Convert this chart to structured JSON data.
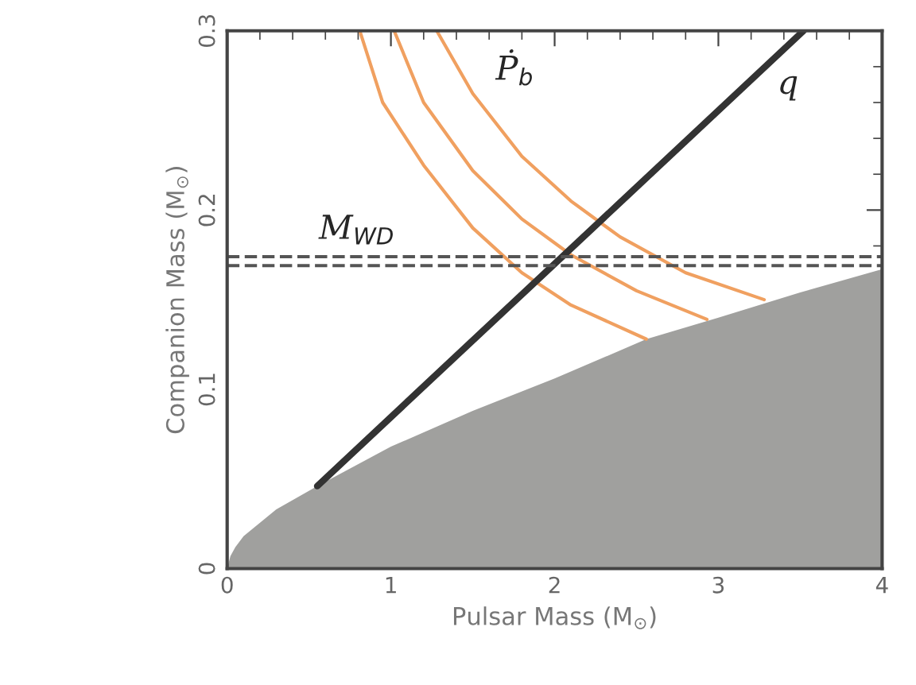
{
  "chart_data": {
    "type": "line",
    "xlabel": "Pulsar Mass (M$_{⊙}$)",
    "ylabel": "Companion Mass (M$_{⊙}$)",
    "xlim": [
      0,
      4
    ],
    "ylim": [
      0,
      0.3
    ],
    "xticks": [
      0,
      1,
      2,
      3,
      4
    ],
    "yticks": [
      0,
      0.1,
      0.2,
      0.3
    ],
    "grid": false,
    "legend": false,
    "series": [
      {
        "type": "area",
        "color": "#a0a09e",
        "x": [
          0,
          0.02,
          0.05,
          0.1,
          0.3,
          0.55,
          1.0,
          1.5,
          2.0,
          2.56,
          3.0,
          3.5,
          4.0
        ],
        "values": [
          0,
          0.007,
          0.012,
          0.018,
          0.033,
          0.046,
          0.068,
          0.088,
          0.106,
          0.128,
          0.14,
          0.154,
          0.167
        ]
      },
      {
        "color": "#f0a060",
        "x": [
          0.81,
          0.95,
          1.2,
          1.5,
          1.8,
          2.1,
          2.56
        ],
        "values": [
          0.3,
          0.26,
          0.225,
          0.19,
          0.165,
          0.147,
          0.128
        ]
      },
      {
        "color": "#f0a060",
        "x": [
          1.02,
          1.2,
          1.5,
          1.8,
          2.1,
          2.5,
          2.93
        ],
        "values": [
          0.3,
          0.26,
          0.222,
          0.195,
          0.175,
          0.155,
          0.139
        ]
      },
      {
        "color": "#f0a060",
        "x": [
          1.28,
          1.5,
          1.8,
          2.1,
          2.4,
          2.8,
          3.28
        ],
        "values": [
          0.3,
          0.265,
          0.23,
          0.205,
          0.185,
          0.165,
          0.15
        ]
      },
      {
        "color": "#333333",
        "x": [
          0.55,
          3.52
        ],
        "values": [
          0.046,
          0.3
        ]
      }
    ],
    "ref_lines": [
      {
        "axis": "y",
        "value": 0.174,
        "color": "#555555",
        "line_style": "dashed"
      },
      {
        "axis": "y",
        "value": 0.169,
        "color": "#555555",
        "line_style": "dashed"
      }
    ],
    "annotations": [
      "Ṗ$_{b}$",
      "q",
      "M$_{WD}$"
    ]
  }
}
